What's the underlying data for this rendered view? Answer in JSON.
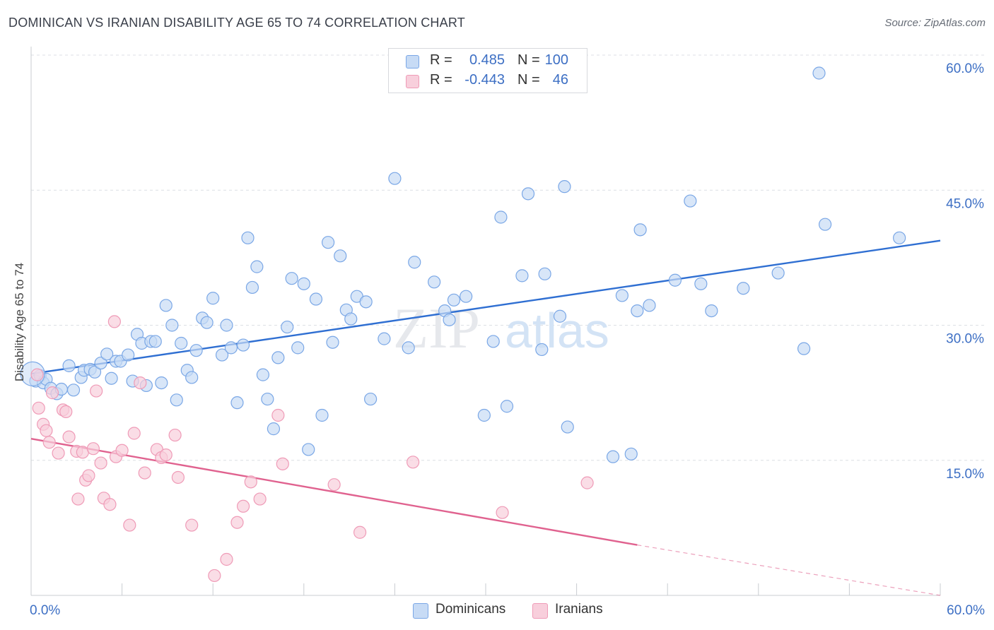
{
  "chart_data": {
    "type": "scatter",
    "title": "DOMINICAN VS IRANIAN DISABILITY AGE 65 TO 74 CORRELATION CHART",
    "source": "Source: ZipAtlas.com",
    "watermark": {
      "zip": "ZIP",
      "atlas": "atlas"
    },
    "xlabel": "",
    "ylabel": "Disability Age 65 to 74",
    "xlim": [
      0,
      60
    ],
    "ylim": [
      0,
      60
    ],
    "x_tick_labels": [
      "0.0%",
      "60.0%"
    ],
    "y_ticks": [
      15,
      30,
      45,
      60
    ],
    "y_tick_labels": [
      "15.0%",
      "30.0%",
      "45.0%",
      "60.0%"
    ],
    "grid": true,
    "legend": [
      {
        "r_label": "R =",
        "r_value": "0.485",
        "n_label": "N =",
        "n_value": "100"
      },
      {
        "r_label": "R =",
        "r_value": "-0.443",
        "n_label": "N =",
        "n_value": "46"
      }
    ],
    "series": [
      {
        "name": "Dominicans",
        "color": "#7aa7e6",
        "fill": "#c7dbf5",
        "line_color": "#2f6fd2",
        "trend": {
          "x0": 0,
          "y0": 24.6,
          "x1": 60,
          "y1": 39.4
        },
        "points": [
          [
            0.3,
            23.8
          ],
          [
            0.6,
            24.4
          ],
          [
            0.8,
            23.6
          ],
          [
            1.0,
            24.0
          ],
          [
            1.3,
            23.0
          ],
          [
            1.7,
            22.4
          ],
          [
            2.0,
            22.9
          ],
          [
            2.5,
            25.5
          ],
          [
            2.8,
            22.8
          ],
          [
            3.3,
            24.2
          ],
          [
            3.5,
            25.0
          ],
          [
            3.9,
            25.1
          ],
          [
            4.2,
            24.8
          ],
          [
            4.6,
            25.8
          ],
          [
            5.0,
            26.8
          ],
          [
            5.3,
            24.1
          ],
          [
            5.6,
            26.0
          ],
          [
            5.9,
            26.0
          ],
          [
            6.4,
            26.7
          ],
          [
            6.7,
            23.8
          ],
          [
            7.0,
            29.0
          ],
          [
            7.3,
            28.0
          ],
          [
            7.6,
            23.3
          ],
          [
            7.9,
            28.2
          ],
          [
            8.2,
            28.2
          ],
          [
            8.6,
            23.6
          ],
          [
            8.9,
            32.2
          ],
          [
            9.3,
            30.0
          ],
          [
            9.6,
            21.7
          ],
          [
            9.9,
            28.0
          ],
          [
            10.3,
            25.0
          ],
          [
            10.6,
            24.2
          ],
          [
            10.9,
            27.2
          ],
          [
            11.3,
            30.8
          ],
          [
            11.6,
            30.3
          ],
          [
            12.0,
            33.0
          ],
          [
            12.6,
            26.7
          ],
          [
            12.9,
            30.0
          ],
          [
            13.2,
            27.5
          ],
          [
            13.6,
            21.4
          ],
          [
            14.0,
            27.8
          ],
          [
            14.3,
            39.7
          ],
          [
            14.6,
            34.2
          ],
          [
            14.9,
            36.5
          ],
          [
            15.3,
            24.5
          ],
          [
            15.6,
            21.8
          ],
          [
            16.0,
            18.5
          ],
          [
            16.3,
            26.4
          ],
          [
            16.9,
            29.8
          ],
          [
            17.2,
            35.2
          ],
          [
            17.6,
            27.5
          ],
          [
            18.0,
            34.6
          ],
          [
            18.3,
            16.2
          ],
          [
            18.8,
            32.9
          ],
          [
            19.2,
            20.0
          ],
          [
            19.6,
            39.2
          ],
          [
            19.9,
            28.1
          ],
          [
            20.4,
            37.7
          ],
          [
            20.8,
            31.7
          ],
          [
            21.1,
            30.7
          ],
          [
            21.5,
            33.2
          ],
          [
            22.1,
            32.6
          ],
          [
            22.4,
            21.8
          ],
          [
            23.3,
            28.5
          ],
          [
            24.0,
            46.3
          ],
          [
            24.9,
            27.5
          ],
          [
            25.3,
            37.0
          ],
          [
            26.6,
            34.8
          ],
          [
            27.3,
            31.6
          ],
          [
            27.6,
            30.6
          ],
          [
            27.9,
            32.8
          ],
          [
            28.7,
            33.2
          ],
          [
            29.9,
            20.0
          ],
          [
            30.5,
            28.2
          ],
          [
            31.0,
            42.0
          ],
          [
            31.4,
            21.0
          ],
          [
            32.4,
            35.5
          ],
          [
            32.8,
            44.6
          ],
          [
            33.7,
            27.3
          ],
          [
            33.9,
            35.7
          ],
          [
            34.9,
            31.0
          ],
          [
            35.2,
            45.4
          ],
          [
            35.4,
            18.7
          ],
          [
            38.4,
            15.4
          ],
          [
            39.0,
            33.3
          ],
          [
            39.6,
            15.7
          ],
          [
            40.0,
            31.6
          ],
          [
            40.2,
            40.6
          ],
          [
            40.8,
            32.2
          ],
          [
            42.5,
            35.0
          ],
          [
            43.5,
            43.8
          ],
          [
            44.2,
            34.6
          ],
          [
            44.9,
            31.6
          ],
          [
            47.0,
            34.1
          ],
          [
            49.3,
            35.8
          ],
          [
            51.0,
            27.4
          ],
          [
            52.0,
            58.0
          ],
          [
            52.4,
            41.2
          ],
          [
            57.3,
            39.7
          ],
          [
            0.1,
            24.6
          ]
        ]
      },
      {
        "name": "Iranians",
        "color": "#ef9bb7",
        "fill": "#f8cfdc",
        "line_color": "#e0628f",
        "trend": {
          "x0": 0,
          "y0": 17.4,
          "x1": 40,
          "y1": 5.6
        },
        "trend_dash": {
          "x0": 40,
          "y0": 5.6,
          "x1": 60,
          "y1": 0.0
        },
        "points": [
          [
            0.4,
            24.5
          ],
          [
            0.5,
            20.8
          ],
          [
            0.8,
            19.0
          ],
          [
            1.0,
            18.3
          ],
          [
            1.2,
            17.0
          ],
          [
            1.4,
            22.5
          ],
          [
            1.8,
            15.8
          ],
          [
            2.1,
            20.6
          ],
          [
            2.3,
            20.4
          ],
          [
            2.5,
            17.6
          ],
          [
            3.0,
            16.0
          ],
          [
            3.1,
            10.7
          ],
          [
            3.4,
            15.9
          ],
          [
            3.6,
            12.8
          ],
          [
            3.8,
            13.3
          ],
          [
            4.1,
            16.3
          ],
          [
            4.3,
            22.7
          ],
          [
            4.6,
            14.7
          ],
          [
            4.8,
            10.8
          ],
          [
            5.2,
            10.1
          ],
          [
            5.5,
            30.4
          ],
          [
            5.6,
            15.4
          ],
          [
            6.0,
            16.1
          ],
          [
            6.5,
            7.8
          ],
          [
            6.8,
            18.0
          ],
          [
            7.2,
            23.6
          ],
          [
            7.5,
            13.6
          ],
          [
            8.3,
            16.2
          ],
          [
            8.6,
            15.3
          ],
          [
            8.9,
            15.6
          ],
          [
            9.5,
            17.8
          ],
          [
            9.7,
            13.1
          ],
          [
            10.6,
            7.8
          ],
          [
            12.1,
            2.2
          ],
          [
            12.9,
            4.0
          ],
          [
            13.6,
            8.1
          ],
          [
            14.0,
            9.9
          ],
          [
            14.5,
            12.6
          ],
          [
            15.1,
            10.7
          ],
          [
            16.3,
            20.0
          ],
          [
            16.6,
            14.6
          ],
          [
            20.0,
            12.3
          ],
          [
            21.7,
            7.0
          ],
          [
            25.2,
            14.8
          ],
          [
            31.1,
            9.2
          ],
          [
            36.7,
            12.5
          ]
        ]
      }
    ]
  }
}
